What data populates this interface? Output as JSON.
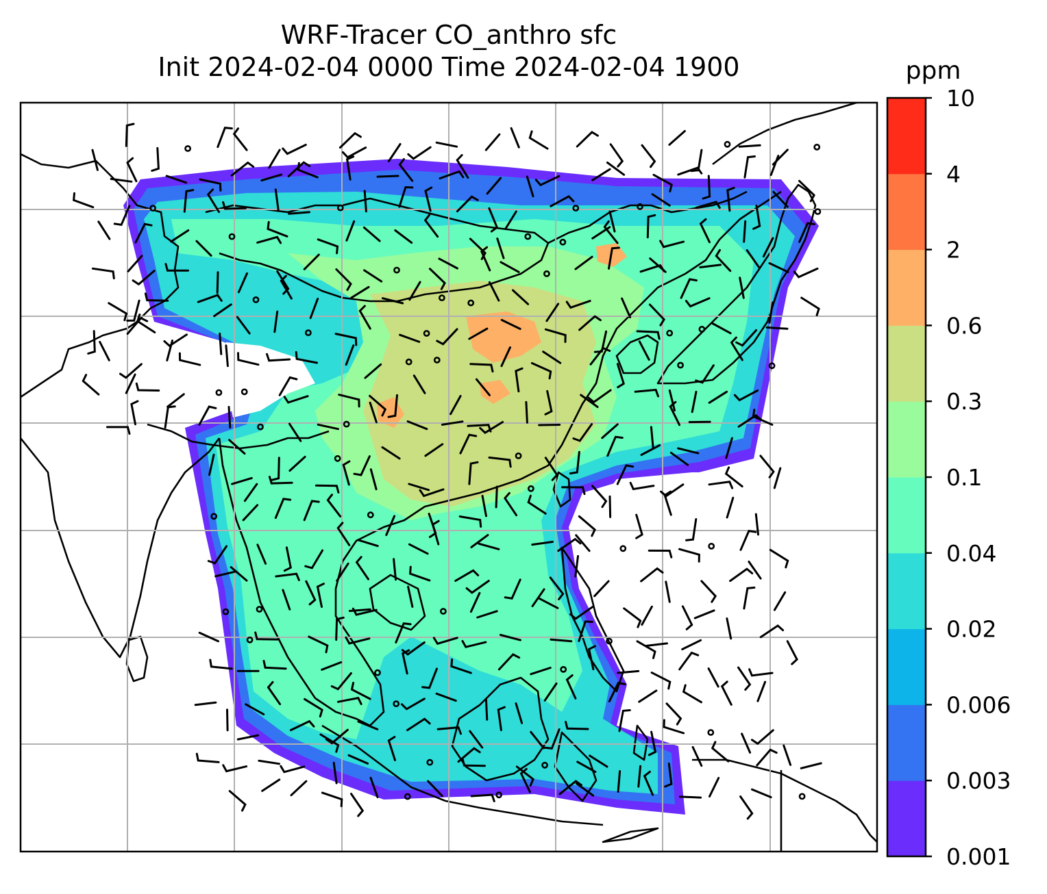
{
  "title": {
    "line1": "WRF-Tracer CO_anthro sfc",
    "line2": "Init 2024-02-04 0000 Time 2024-02-04 1900"
  },
  "colorbar": {
    "unit": "ppm",
    "levels": [
      "0.001",
      "0.003",
      "0.006",
      "0.02",
      "0.04",
      "0.1",
      "0.3",
      "0.6",
      "2",
      "4",
      "10"
    ],
    "colors": [
      "#6a2dfb",
      "#3474f2",
      "#0cb4ea",
      "#2fdcd8",
      "#66fcbd",
      "#9afb9c",
      "#cadf82",
      "#fdb066",
      "#ff7640",
      "#ff2c1a"
    ]
  },
  "map": {
    "background": "#ffffff",
    "gridline_color": "#b0b0b0",
    "coastline_color": "#000000",
    "overlays": [
      "co-tracer-concentration-field",
      "coastlines",
      "wind-barbs",
      "lat-lon-gridlines"
    ]
  }
}
